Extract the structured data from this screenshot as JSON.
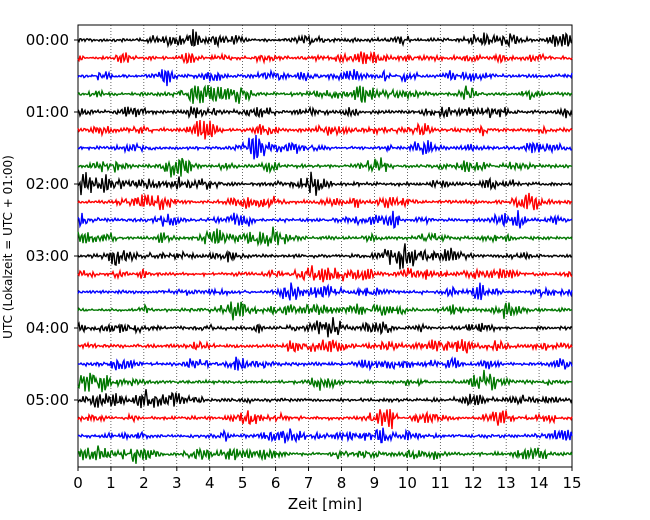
{
  "chart_data": {
    "type": "line",
    "title": "",
    "xlabel": "Zeit  [min]",
    "ylabel": "UTC (Lokalzeit = UTC + 01:00)",
    "xlim": [
      0,
      15
    ],
    "x_ticks": [
      "0",
      "1",
      "2",
      "3",
      "4",
      "5",
      "6",
      "7",
      "8",
      "9",
      "10",
      "11",
      "12",
      "13",
      "14",
      "15"
    ],
    "y_ticks": [
      "00:00",
      "01:00",
      "02:00",
      "03:00",
      "04:00",
      "05:00"
    ],
    "rows_per_hour": 4,
    "row_count": 24,
    "trace_colors": [
      "#000000",
      "#ff0000",
      "#0000ff",
      "#007700"
    ],
    "grid": "vertical dotted lines at each minute",
    "legend": "none"
  }
}
